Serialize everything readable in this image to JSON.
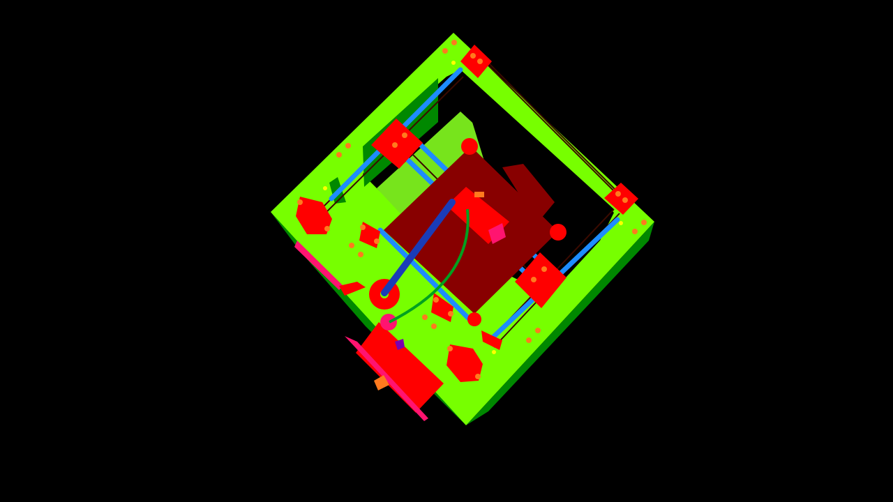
{
  "scene": {
    "background": "#000000",
    "colors": {
      "frame": "#77FF00",
      "frame_inner": "#77E41C",
      "frame_side": "#008800",
      "bed": "#880000",
      "part": "#FF0000",
      "part_dark": "#E00000",
      "magenta": "#FF1470",
      "rod": "#1E8CFF",
      "belt": "#3A0A00",
      "orange": "#FF7A1E",
      "yellow": "#FFFF00",
      "tube_blue": "#1A3CB8",
      "tube_green": "#00A020"
    },
    "icons": [
      "printer-frame",
      "heated-bed",
      "corner-bracket",
      "motor-mount",
      "extruder-assembly",
      "bowden-tube",
      "filament-cable"
    ]
  }
}
